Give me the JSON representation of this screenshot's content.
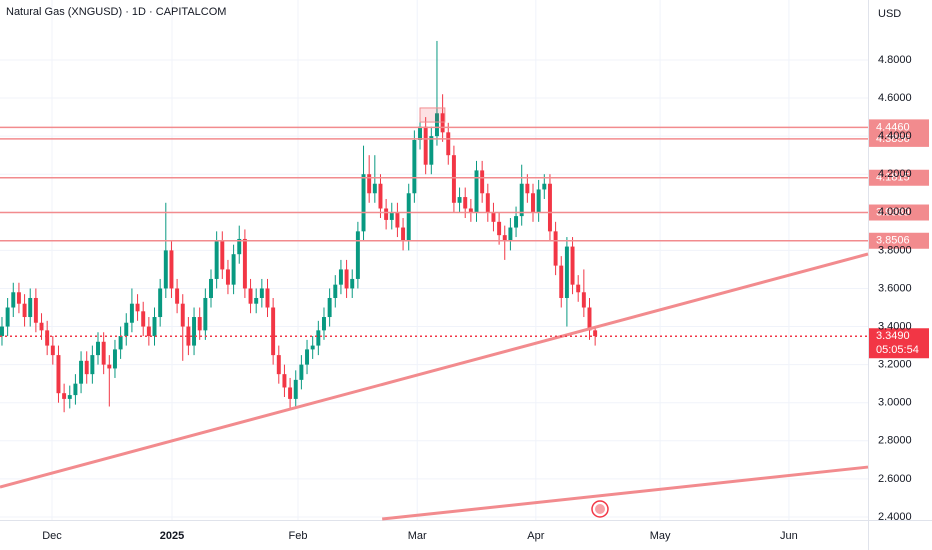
{
  "chart_data": {
    "type": "candlestick",
    "title": "Natural Gas (XNGUSD) · 1D · CAPITALCOM",
    "currency": "USD",
    "up_color": "#089981",
    "down_color": "#f23645",
    "level_color": "#f28b8e",
    "grid": true,
    "xlim": [
      -0.35,
      153.3
    ],
    "ylim": [
      2.384,
      5.115
    ],
    "xticks": [
      {
        "value": 8.85,
        "label": "Dec"
      },
      {
        "value": 30.1,
        "label": "2025"
      },
      {
        "value": 52.4,
        "label": "Feb"
      },
      {
        "value": 73.5,
        "label": "Mar"
      },
      {
        "value": 94.5,
        "label": "Apr"
      },
      {
        "value": 116.5,
        "label": "May"
      },
      {
        "value": 139.3,
        "label": "Jun"
      }
    ],
    "yticks": [
      {
        "value": 2.4,
        "label": "2.4000"
      },
      {
        "value": 2.6,
        "label": "2.6000"
      },
      {
        "value": 2.8,
        "label": "2.8000"
      },
      {
        "value": 3.0,
        "label": "3.0000"
      },
      {
        "value": 3.2,
        "label": "3.2000"
      },
      {
        "value": 3.4,
        "label": "3.4000"
      },
      {
        "value": 3.6,
        "label": "3.6000"
      },
      {
        "value": 3.8,
        "label": "3.8000"
      },
      {
        "value": 4.0,
        "label": "4.0000"
      },
      {
        "value": 4.2,
        "label": "4.2000"
      },
      {
        "value": 4.4,
        "label": "4.4000"
      },
      {
        "value": 4.6,
        "label": "4.6000"
      },
      {
        "value": 4.8,
        "label": "4.8000"
      }
    ],
    "open": [
      3.35,
      3.4,
      3.5,
      3.58,
      3.52,
      3.45,
      3.55,
      3.42,
      3.38,
      3.3,
      3.25,
      3.05,
      3.02,
      3.04,
      3.1,
      3.22,
      3.15,
      3.25,
      3.32,
      3.2,
      3.18,
      3.28,
      3.35,
      3.42,
      3.52,
      3.48,
      3.4,
      3.35,
      3.45,
      3.6,
      3.8,
      3.6,
      3.52,
      3.4,
      3.3,
      3.45,
      3.38,
      3.55,
      3.65,
      3.85,
      3.7,
      3.62,
      3.78,
      3.86,
      3.6,
      3.52,
      3.55,
      3.6,
      3.5,
      3.25,
      3.15,
      3.08,
      3.02,
      3.12,
      3.2,
      3.28,
      3.3,
      3.38,
      3.45,
      3.55,
      3.62,
      3.7,
      3.6,
      3.65,
      3.9,
      4.2,
      4.1,
      4.15,
      4.02,
      3.96,
      4.0,
      3.92,
      3.85,
      4.1,
      4.38,
      4.45,
      4.25,
      4.4,
      4.52,
      4.42,
      4.3,
      4.05,
      4.08,
      4.02,
      4.0,
      4.22,
      4.1,
      4.0,
      3.95,
      3.88,
      3.85,
      3.92,
      3.98,
      4.15,
      4.1,
      4.0,
      4.12,
      4.15,
      3.9,
      3.72,
      3.55,
      3.82,
      3.62,
      3.58,
      3.5,
      3.38
    ],
    "high": [
      3.45,
      3.55,
      3.63,
      3.63,
      3.57,
      3.6,
      3.6,
      3.47,
      3.43,
      3.35,
      3.3,
      3.1,
      3.09,
      3.15,
      3.27,
      3.27,
      3.3,
      3.37,
      3.37,
      3.25,
      3.33,
      3.4,
      3.47,
      3.6,
      3.57,
      3.53,
      3.45,
      3.5,
      3.65,
      4.05,
      3.85,
      3.65,
      3.57,
      3.45,
      3.5,
      3.5,
      3.6,
      3.7,
      3.9,
      3.9,
      3.75,
      3.83,
      3.93,
      3.91,
      3.65,
      3.6,
      3.65,
      3.65,
      3.55,
      3.3,
      3.2,
      3.13,
      3.17,
      3.25,
      3.33,
      3.35,
      3.43,
      3.5,
      3.6,
      3.67,
      3.75,
      3.75,
      3.7,
      3.95,
      4.35,
      4.3,
      4.3,
      4.2,
      4.07,
      4.05,
      4.05,
      3.97,
      4.15,
      4.43,
      4.5,
      4.5,
      4.45,
      4.9,
      4.62,
      4.47,
      4.35,
      4.13,
      4.13,
      4.07,
      4.27,
      4.27,
      4.15,
      4.05,
      4.0,
      3.93,
      3.97,
      4.03,
      4.25,
      4.2,
      4.15,
      4.17,
      4.2,
      4.2,
      3.95,
      3.77,
      3.87,
      3.87,
      3.67,
      3.7,
      3.55,
      3.4
    ],
    "low": [
      3.3,
      3.35,
      3.45,
      3.47,
      3.4,
      3.4,
      3.37,
      3.33,
      3.25,
      3.2,
      3.0,
      2.95,
      2.97,
      2.99,
      3.05,
      3.1,
      3.1,
      3.2,
      3.15,
      2.98,
      3.13,
      3.23,
      3.3,
      3.37,
      3.43,
      3.35,
      3.3,
      3.3,
      3.4,
      3.55,
      3.55,
      3.47,
      3.22,
      3.25,
      3.25,
      3.33,
      3.33,
      3.5,
      3.6,
      3.65,
      3.57,
      3.57,
      3.73,
      3.55,
      3.47,
      3.47,
      3.5,
      3.45,
      3.2,
      3.1,
      3.03,
      2.97,
      2.97,
      3.07,
      3.15,
      3.23,
      3.25,
      3.33,
      3.4,
      3.5,
      3.57,
      3.55,
      3.55,
      3.6,
      3.85,
      4.05,
      4.05,
      3.97,
      3.91,
      3.91,
      3.87,
      3.8,
      3.8,
      4.05,
      4.33,
      4.2,
      4.2,
      4.35,
      4.37,
      4.25,
      4.0,
      4.0,
      3.97,
      3.95,
      3.95,
      4.05,
      3.95,
      3.9,
      3.83,
      3.75,
      3.8,
      3.87,
      3.93,
      4.05,
      3.95,
      3.95,
      4.07,
      3.85,
      3.67,
      3.5,
      3.4,
      3.57,
      3.53,
      3.45,
      3.33,
      3.3
    ],
    "close": [
      3.4,
      3.5,
      3.58,
      3.52,
      3.45,
      3.55,
      3.42,
      3.38,
      3.3,
      3.25,
      3.05,
      3.02,
      3.04,
      3.1,
      3.22,
      3.15,
      3.25,
      3.32,
      3.2,
      3.18,
      3.28,
      3.35,
      3.42,
      3.52,
      3.48,
      3.4,
      3.35,
      3.45,
      3.6,
      3.8,
      3.6,
      3.52,
      3.4,
      3.3,
      3.45,
      3.38,
      3.55,
      3.65,
      3.85,
      3.7,
      3.62,
      3.78,
      3.86,
      3.6,
      3.52,
      3.55,
      3.6,
      3.5,
      3.25,
      3.15,
      3.08,
      3.02,
      3.12,
      3.2,
      3.28,
      3.3,
      3.38,
      3.45,
      3.55,
      3.62,
      3.7,
      3.6,
      3.65,
      3.9,
      4.2,
      4.1,
      4.15,
      4.02,
      3.96,
      4.0,
      3.92,
      3.85,
      4.1,
      4.38,
      4.45,
      4.25,
      4.4,
      4.52,
      4.42,
      4.3,
      4.05,
      4.08,
      4.02,
      4.0,
      4.22,
      4.1,
      4.0,
      3.95,
      3.88,
      3.85,
      3.92,
      3.98,
      4.15,
      4.1,
      4.0,
      4.12,
      4.15,
      3.9,
      3.72,
      3.55,
      3.82,
      3.62,
      3.58,
      3.5,
      3.38,
      3.35
    ],
    "levels": [
      {
        "value": 4.446,
        "label": "4.4460"
      },
      {
        "value": 4.3856,
        "label": "4.3856"
      },
      {
        "value": 4.1815,
        "label": "4.1815"
      },
      {
        "value": 3.9989,
        "label": "3.9989"
      },
      {
        "value": 3.8506,
        "label": "3.8506"
      }
    ],
    "trendlines": [
      {
        "x": [
          -0.35,
          153.3
        ],
        "y": [
          2.557,
          3.781
        ]
      },
      {
        "x": [
          67.3,
          153.3
        ],
        "y": [
          2.389,
          2.662
        ]
      }
    ],
    "box": {
      "x": [
        74,
        78.4
      ],
      "y": [
        4.474,
        4.548
      ]
    },
    "last_price": {
      "value": 3.349,
      "label": "3.3490",
      "countdown": "05:05:54"
    }
  }
}
